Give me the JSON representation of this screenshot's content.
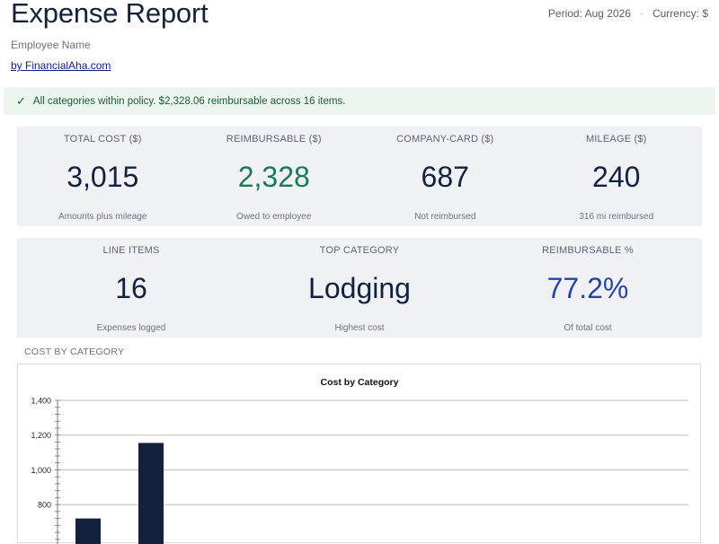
{
  "header": {
    "title": "Expense Report",
    "period": "Period: Aug 2026",
    "separator": "·",
    "currency": "Currency: $",
    "subtitle": "Employee Name",
    "byline": "by FinancialAha.com"
  },
  "banner": {
    "icon": "check-icon",
    "text": "All categories within policy. $2,328.06 reimbursable across 16 items."
  },
  "kpis_row1": [
    {
      "label": "TOTAL COST ($)",
      "value": "3,015",
      "sub": "Amounts plus mileage"
    },
    {
      "label": "REIMBURSABLE ($)",
      "value": "2,328",
      "sub": "Owed to employee"
    },
    {
      "label": "COMPANY-CARD ($)",
      "value": "687",
      "sub": "Not reimbursed"
    },
    {
      "label": "MILEAGE ($)",
      "value": "240",
      "sub": "316 mi reimbursed"
    }
  ],
  "kpis_row2": [
    {
      "label": "LINE ITEMS",
      "value": "16",
      "sub": "Expenses logged"
    },
    {
      "label": "TOP CATEGORY",
      "value": "Lodging",
      "sub": "Highest cost"
    },
    {
      "label": "REIMBURSABLE %",
      "value": "77.2%",
      "sub": "Of total cost"
    }
  ],
  "colors": {
    "green_value": "#1b7a55",
    "blue_value": "#2a44a0",
    "bar": "#14213d"
  },
  "section": {
    "cost_by_category": "COST BY CATEGORY"
  },
  "chart_data": {
    "type": "bar",
    "title": "Cost by Category",
    "xlabel": "",
    "ylabel": "",
    "ylim": [
      0,
      1400
    ],
    "yticks": [
      800,
      1000,
      1200,
      1400
    ],
    "ytick_labels": [
      "800",
      "1,000",
      "1,200",
      "1,400"
    ],
    "grid": true,
    "values": [
      720,
      1155
    ]
  }
}
